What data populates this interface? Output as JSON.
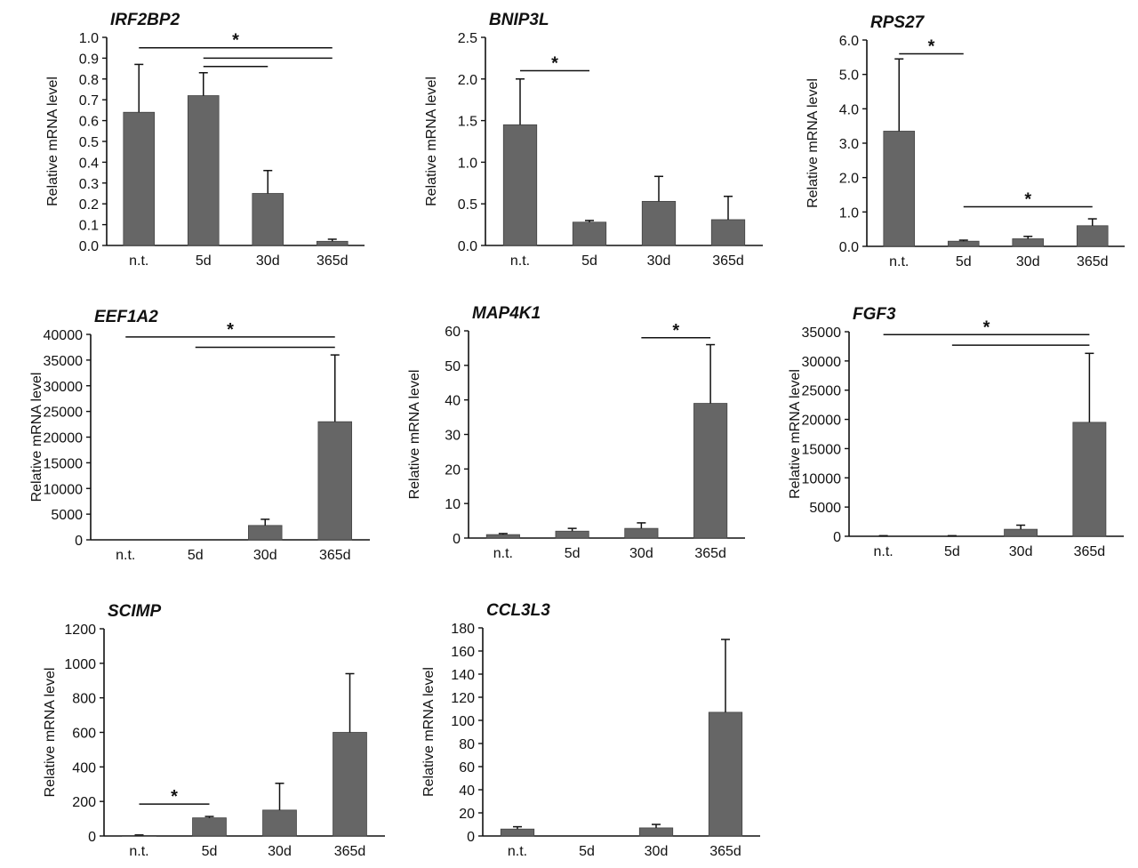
{
  "colors": {
    "bar": "#666666",
    "axis": "#111111",
    "background": "#ffffff"
  },
  "chart_data": [
    {
      "type": "bar",
      "title": "IRF2BP2",
      "ylabel": "Relative mRNA level",
      "categories": [
        "n.t.",
        "5d",
        "30d",
        "365d"
      ],
      "values": [
        0.64,
        0.72,
        0.25,
        0.02
      ],
      "errors": [
        0.23,
        0.11,
        0.11,
        0.01
      ],
      "ylim": [
        0,
        1.0
      ],
      "yticks": [
        "0.0",
        "0.1",
        "0.2",
        "0.3",
        "0.4",
        "0.5",
        "0.6",
        "0.7",
        "0.8",
        "0.9",
        "1.0"
      ],
      "significance": [
        {
          "from": 0,
          "to": 3,
          "y": 0.95,
          "label": "*"
        },
        {
          "from": 1,
          "to": 3,
          "y": 0.9,
          "label": ""
        },
        {
          "from": 1,
          "to": 2,
          "y": 0.86,
          "label": ""
        }
      ]
    },
    {
      "type": "bar",
      "title": "BNIP3L",
      "ylabel": "Relative mRNA level",
      "categories": [
        "n.t.",
        "5d",
        "30d",
        "365d"
      ],
      "values": [
        1.45,
        0.28,
        0.53,
        0.31
      ],
      "errors": [
        0.55,
        0.02,
        0.3,
        0.28
      ],
      "ylim": [
        0,
        2.5
      ],
      "yticks": [
        "0.0",
        "0.5",
        "1.0",
        "1.5",
        "2.0",
        "2.5"
      ],
      "significance": [
        {
          "from": 0,
          "to": 1,
          "y": 2.1,
          "label": "*"
        }
      ]
    },
    {
      "type": "bar",
      "title": "RPS27",
      "ylabel": "Relative mRNA level",
      "categories": [
        "n.t.",
        "5d",
        "30d",
        "365d"
      ],
      "values": [
        3.35,
        0.15,
        0.22,
        0.6
      ],
      "errors": [
        2.1,
        0.03,
        0.07,
        0.2
      ],
      "ylim": [
        0,
        6.0
      ],
      "yticks": [
        "0.0",
        "1.0",
        "2.0",
        "3.0",
        "4.0",
        "5.0",
        "6.0"
      ],
      "significance": [
        {
          "from": 0,
          "to": 1,
          "y": 5.6,
          "label": "*"
        },
        {
          "from": 1,
          "to": 3,
          "y": 1.15,
          "label": "*"
        }
      ]
    },
    {
      "type": "bar",
      "title": "EEF1A2",
      "ylabel": "Relative mRNA level",
      "categories": [
        "n.t.",
        "5d",
        "30d",
        "365d"
      ],
      "values": [
        0,
        0,
        2800,
        23000
      ],
      "errors": [
        0,
        0,
        1200,
        13000
      ],
      "ylim": [
        0,
        40000
      ],
      "yticks": [
        "0",
        "5000",
        "10000",
        "15000",
        "20000",
        "25000",
        "30000",
        "35000",
        "40000"
      ],
      "significance": [
        {
          "from": 0,
          "to": 3,
          "y": 39500,
          "label": "*"
        },
        {
          "from": 1,
          "to": 3,
          "y": 37500,
          "label": ""
        }
      ]
    },
    {
      "type": "bar",
      "title": "MAP4K1",
      "ylabel": "Relative mRNA level",
      "categories": [
        "n.t.",
        "5d",
        "30d",
        "365d"
      ],
      "values": [
        1.0,
        2.0,
        2.8,
        39.0
      ],
      "errors": [
        0.3,
        0.8,
        1.6,
        17.0
      ],
      "ylim": [
        0,
        60
      ],
      "yticks": [
        "0",
        "10",
        "20",
        "30",
        "40",
        "50",
        "60"
      ],
      "significance": [
        {
          "from": 2,
          "to": 3,
          "y": 58,
          "label": "*"
        }
      ]
    },
    {
      "type": "bar",
      "title": "FGF3",
      "ylabel": "Relative mRNA level",
      "categories": [
        "n.t.",
        "5d",
        "30d",
        "365d"
      ],
      "values": [
        0,
        0,
        1200,
        19500
      ],
      "errors": [
        100,
        100,
        700,
        11800
      ],
      "ylim": [
        0,
        35000
      ],
      "yticks": [
        "0",
        "5000",
        "10000",
        "15000",
        "20000",
        "25000",
        "30000",
        "35000"
      ],
      "significance": [
        {
          "from": 0,
          "to": 3,
          "y": 34500,
          "label": "*"
        },
        {
          "from": 1,
          "to": 3,
          "y": 32700,
          "label": ""
        }
      ]
    },
    {
      "type": "bar",
      "title": "SCIMP",
      "ylabel": "Relative mRNA level",
      "categories": [
        "n.t.",
        "5d",
        "30d",
        "365d"
      ],
      "values": [
        3,
        105,
        150,
        600
      ],
      "errors": [
        3,
        8,
        155,
        340
      ],
      "ylim": [
        0,
        1200
      ],
      "yticks": [
        "0",
        "200",
        "400",
        "600",
        "800",
        "1000",
        "1200"
      ],
      "significance": [
        {
          "from": 0,
          "to": 1,
          "y": 185,
          "label": "*"
        }
      ]
    },
    {
      "type": "bar",
      "title": "CCL3L3",
      "ylabel": "Relative mRNA level",
      "categories": [
        "n.t.",
        "5d",
        "30d",
        "365d"
      ],
      "values": [
        6,
        0,
        7,
        107
      ],
      "errors": [
        2,
        0,
        3,
        63
      ],
      "ylim": [
        0,
        180
      ],
      "yticks": [
        "0",
        "20",
        "40",
        "60",
        "80",
        "100",
        "120",
        "140",
        "160",
        "180"
      ],
      "significance": []
    }
  ]
}
